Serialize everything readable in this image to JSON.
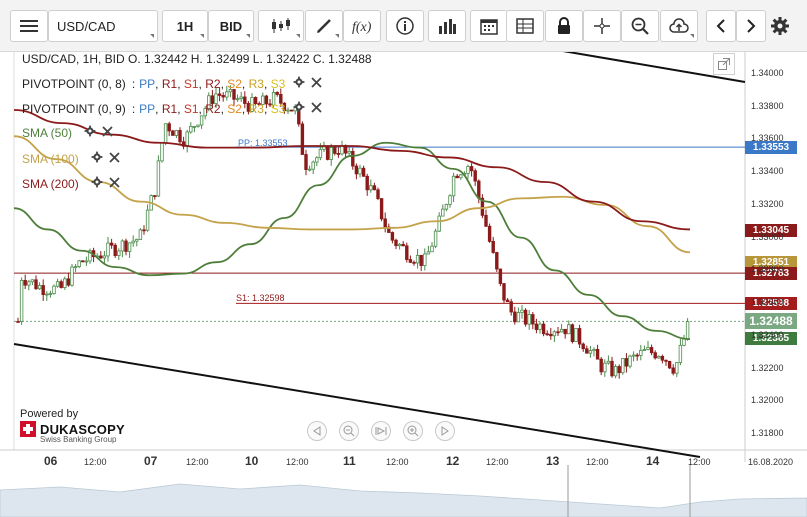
{
  "toolbar": {
    "symbol": "USD/CAD",
    "timeframe": "1H",
    "price_side": "BID",
    "menu_icon": "hamburger-menu-icon",
    "chart_type_icon": "candlestick-icon",
    "draw_icon": "pencil-icon",
    "indicators_icon": "fx-icon",
    "info_icon": "info-icon",
    "volume_icon": "bar-chart-icon",
    "calendar_icon": "calendar-icon",
    "table_icon": "table-icon",
    "lock_icon": "lock-icon",
    "crosshair_icon": "crosshair-icon",
    "zoom_icon": "zoom-icon",
    "upload_icon": "cloud-upload-icon",
    "prev_icon": "chevron-left-icon",
    "next_icon": "chevron-right-icon",
    "settings_icon": "gear-icon"
  },
  "header": {
    "ohlc": "USD/CAD, 1H, BID   O. 1.32442 H. 1.32499 L. 1.32422 C. 1.32488"
  },
  "legend": {
    "pivot1": {
      "label": "PIVOTPOINT (0, 8)",
      "parts": [
        "PP",
        "R1",
        "S1",
        "R2",
        "S2",
        "R3",
        "S3"
      ]
    },
    "pivot2": {
      "label": "PIVOTPOINT (0, 9)",
      "parts": [
        "PP",
        "R1",
        "S1",
        "R2",
        "S2",
        "R3",
        "S3"
      ]
    },
    "sma50": "SMA (50)",
    "sma100": "SMA (100)",
    "sma200": "SMA (200)"
  },
  "annotations": {
    "pp": "PP: 1.33553",
    "s1": "S1: 1.32598"
  },
  "branding": {
    "powered": "Powered by",
    "name": "DUKASCOPY",
    "sub": "Swiss Banking Group"
  },
  "price_tags": [
    {
      "text": "1.33553",
      "color": "#3b78c8",
      "price": 1.33553
    },
    {
      "text": "1.33045",
      "color": "#8b1a1a",
      "price": 1.33045
    },
    {
      "text": "1.32851",
      "color": "#b8963a",
      "price": 1.32851
    },
    {
      "text": "1.32783",
      "color": "#8b1a1a",
      "price": 1.32783
    },
    {
      "text": "1.32598",
      "color": "#a51c1c",
      "price": 1.32598
    },
    {
      "text": "1.32488",
      "color": "#7aa882",
      "price": 1.32488
    },
    {
      "text": "1.32385",
      "color": "#3f7a3f",
      "price": 1.32385
    }
  ],
  "colors": {
    "sma50": "#4e7f3a",
    "sma100": "#c4a24a",
    "sma200": "#8b1a1a",
    "pp": "#3b78c8",
    "pivot_red": "#8b1a1a",
    "candle": "#4a8b4a",
    "candle_down": "#8b1a1a"
  },
  "chart_data": {
    "type": "candlestick",
    "symbol": "USD/CAD",
    "timeframe": "1H",
    "y_ticks": [
      "1.34000",
      "1.33800",
      "1.33600",
      "1.33400",
      "1.33200",
      "1.33000",
      "1.32800",
      "1.32600",
      "1.32400",
      "1.32200",
      "1.32000",
      "1.31800"
    ],
    "x_ticks": [
      "06",
      "12:00",
      "07",
      "12:00",
      "10",
      "12:00",
      "11",
      "12:00",
      "12",
      "12:00",
      "13",
      "12:00",
      "14",
      "12:00",
      "16.08.2020"
    ],
    "day_labels": [
      "06",
      "07",
      "10",
      "11",
      "12",
      "13",
      "14"
    ],
    "sma50": [
      1.3318,
      1.3305,
      1.3292,
      1.3282,
      1.3277,
      1.3278,
      1.3285,
      1.3296,
      1.3312,
      1.3332,
      1.335,
      1.3358,
      1.3355,
      1.3342,
      1.3322,
      1.33,
      1.328,
      1.3265,
      1.3252,
      1.3243,
      1.3238
    ],
    "sma100": [
      1.3362,
      1.3348,
      1.3334,
      1.3322,
      1.3314,
      1.3309,
      1.3306,
      1.3305,
      1.3305,
      1.3306,
      1.331,
      1.3318,
      1.3324,
      1.3325,
      1.332,
      1.3307,
      1.3291
    ],
    "sma200": [
      1.3378,
      1.337,
      1.3363,
      1.3358,
      1.3355,
      1.3355,
      1.3356,
      1.3356,
      1.3353,
      1.3349,
      1.3343,
      1.3334,
      1.3322,
      1.331,
      1.3305
    ],
    "pivot_pp": 1.33553,
    "pivot_r": 1.32783,
    "pivot_s1": 1.32598,
    "last_close": 1.32488
  }
}
